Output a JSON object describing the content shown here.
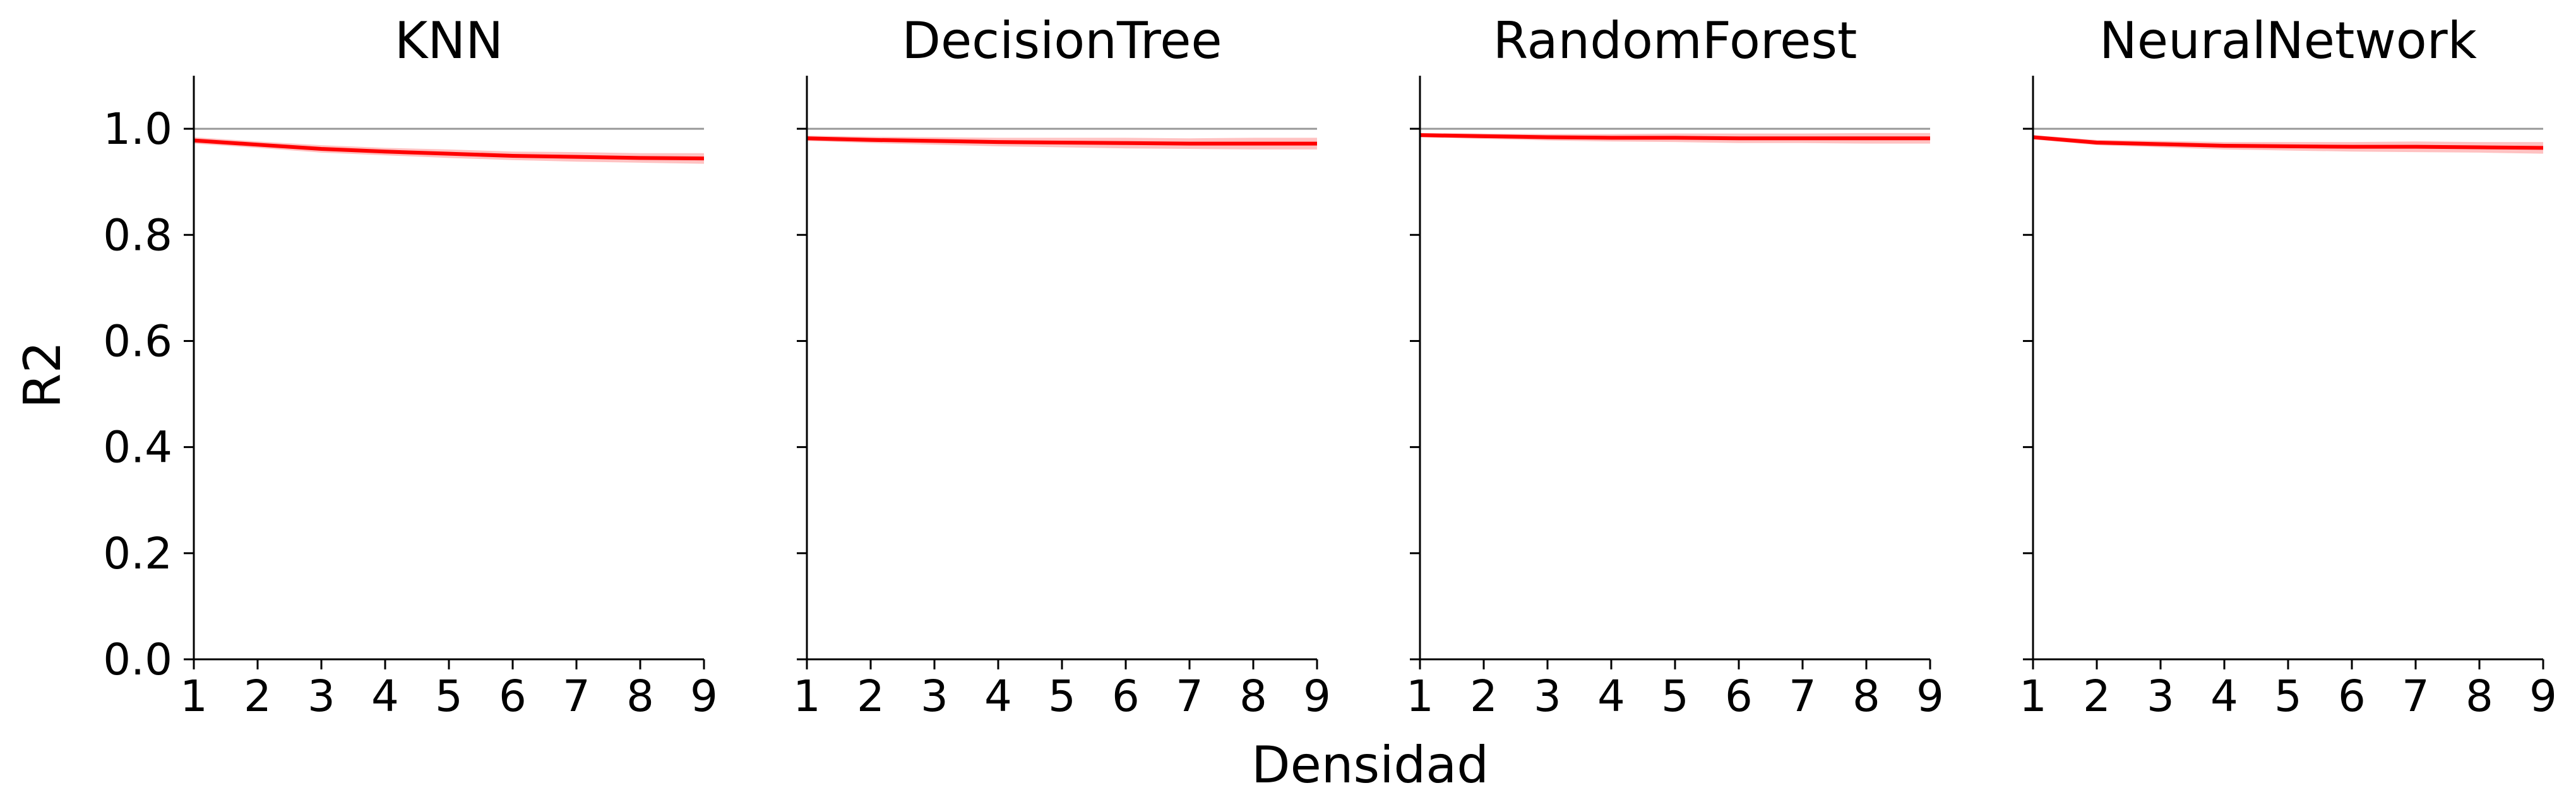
{
  "colors": {
    "line": "#ff0000",
    "band": "#ff9999",
    "reference": "#999999",
    "axis": "#000000"
  },
  "chart_data": {
    "type": "line",
    "layout": "small-multiples",
    "xlabel": "Densidad",
    "ylabel": "R2",
    "xlim": [
      1,
      9
    ],
    "ylim": [
      0,
      1.1
    ],
    "xticks": [
      1,
      2,
      3,
      4,
      5,
      6,
      7,
      8,
      9
    ],
    "yticks": [
      0.0,
      0.2,
      0.4,
      0.6,
      0.8,
      1.0
    ],
    "ytick_labels": [
      "0.0",
      "0.2",
      "0.4",
      "0.6",
      "0.8",
      "1.0"
    ],
    "reference_line": 1.0,
    "grid": false,
    "x": [
      1,
      2,
      3,
      4,
      5,
      6,
      7,
      8,
      9
    ],
    "panels": [
      {
        "title": "KNN",
        "y": [
          0.978,
          0.97,
          0.962,
          0.957,
          0.953,
          0.949,
          0.947,
          0.945,
          0.944
        ],
        "band": [
          0.006,
          0.006,
          0.007,
          0.007,
          0.008,
          0.008,
          0.009,
          0.009,
          0.01
        ]
      },
      {
        "title": "DecisionTree",
        "y": [
          0.982,
          0.979,
          0.977,
          0.975,
          0.974,
          0.973,
          0.972,
          0.972,
          0.972
        ],
        "band": [
          0.005,
          0.006,
          0.007,
          0.008,
          0.009,
          0.01,
          0.01,
          0.011,
          0.011
        ]
      },
      {
        "title": "RandomForest",
        "y": [
          0.988,
          0.986,
          0.984,
          0.983,
          0.983,
          0.982,
          0.982,
          0.982,
          0.982
        ],
        "band": [
          0.004,
          0.005,
          0.006,
          0.007,
          0.008,
          0.009,
          0.009,
          0.01,
          0.01
        ]
      },
      {
        "title": "NeuralNetwork",
        "y": [
          0.984,
          0.974,
          0.971,
          0.968,
          0.967,
          0.966,
          0.966,
          0.965,
          0.964
        ],
        "band": [
          0.004,
          0.005,
          0.006,
          0.007,
          0.008,
          0.009,
          0.01,
          0.01,
          0.011
        ]
      }
    ]
  }
}
